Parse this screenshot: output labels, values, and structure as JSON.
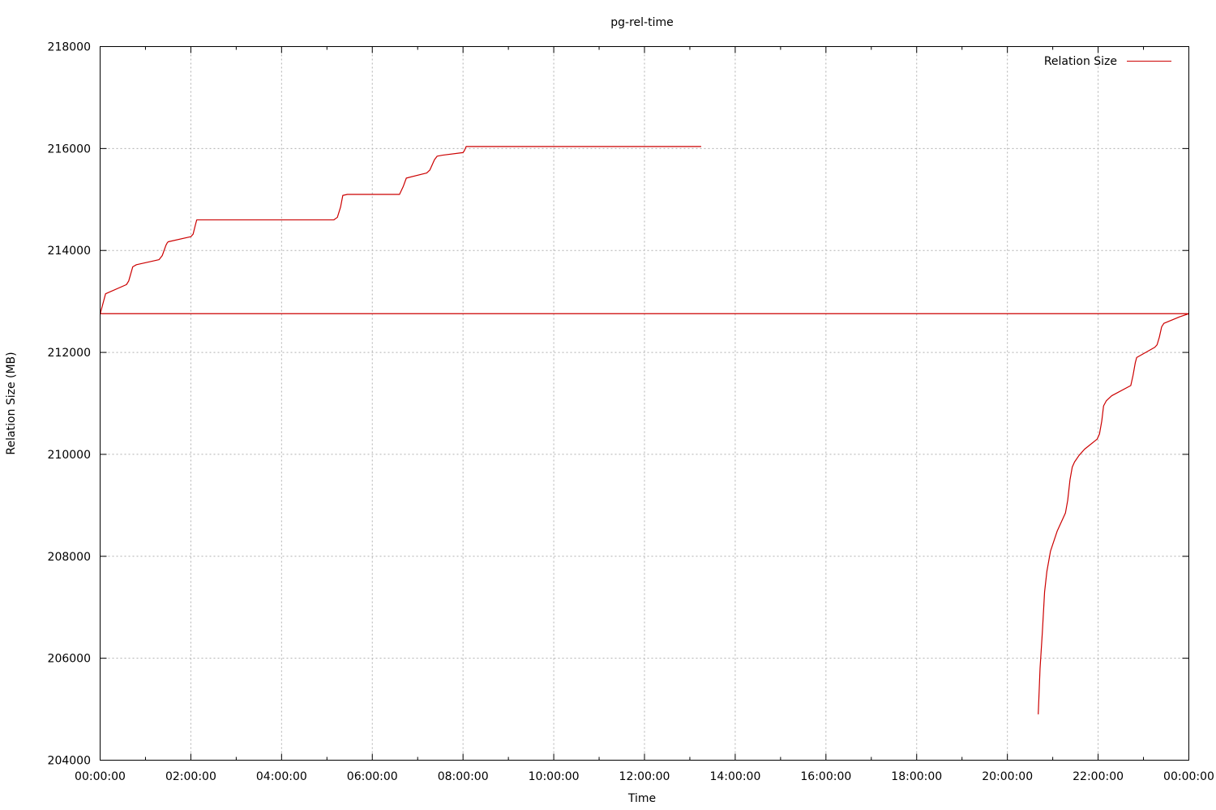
{
  "chart_data": {
    "type": "line",
    "title": "pg-rel-time",
    "xlabel": "Time",
    "ylabel": "Relation Size (MB)",
    "x_ticks": [
      "00:00:00",
      "02:00:00",
      "04:00:00",
      "06:00:00",
      "08:00:00",
      "10:00:00",
      "12:00:00",
      "14:00:00",
      "16:00:00",
      "18:00:00",
      "20:00:00",
      "22:00:00",
      "00:00:00"
    ],
    "x_range_hours": [
      0,
      24
    ],
    "ylim": [
      204000,
      218000
    ],
    "y_ticks": [
      "204000",
      "206000",
      "208000",
      "210000",
      "212000",
      "214000",
      "216000",
      "218000"
    ],
    "grid": true,
    "legend_position": "top-right",
    "series": [
      {
        "name": "Relation Size",
        "color": "#cc0000",
        "x_hours": [
          0,
          0.12,
          0.58,
          0.63,
          0.72,
          0.8,
          1.3,
          1.37,
          1.45,
          1.48,
          1.5,
          2.0,
          2.05,
          2.1,
          2.13,
          5.15,
          5.23,
          5.3,
          5.35,
          5.45,
          6.6,
          6.68,
          6.75,
          7.2,
          7.27,
          7.37,
          7.43,
          7.55,
          8.0,
          8.03,
          8.07,
          13.25,
          13.25,
          20.68,
          20.72,
          20.77,
          20.82,
          20.87,
          20.95,
          21.1,
          21.28,
          21.33,
          21.38,
          21.43,
          21.48,
          21.58,
          21.7,
          21.98,
          22.03,
          22.08,
          22.12,
          22.18,
          22.3,
          22.72,
          22.77,
          22.82,
          22.85,
          23.25,
          23.3,
          23.35,
          23.4,
          23.45,
          23.8,
          24.0,
          24.0,
          0
        ],
        "y_mb": [
          212750,
          213150,
          213330,
          213400,
          213680,
          213720,
          213820,
          213900,
          214100,
          214150,
          214170,
          214270,
          214320,
          214500,
          214600,
          214600,
          214650,
          214850,
          215080,
          215100,
          215100,
          215250,
          215420,
          215520,
          215580,
          215780,
          215850,
          215870,
          215920,
          215960,
          216040,
          216040,
          216040,
          204900,
          205800,
          206500,
          207300,
          207700,
          208100,
          208500,
          208850,
          209100,
          209500,
          209750,
          209850,
          209980,
          210100,
          210300,
          210400,
          210650,
          210950,
          211050,
          211150,
          211350,
          211550,
          211800,
          211900,
          212100,
          212150,
          212300,
          212500,
          212570,
          212700,
          212760,
          212760,
          212760
        ],
        "segments": [
          [
            0,
            32
          ],
          [
            33,
            65
          ]
        ]
      }
    ]
  }
}
